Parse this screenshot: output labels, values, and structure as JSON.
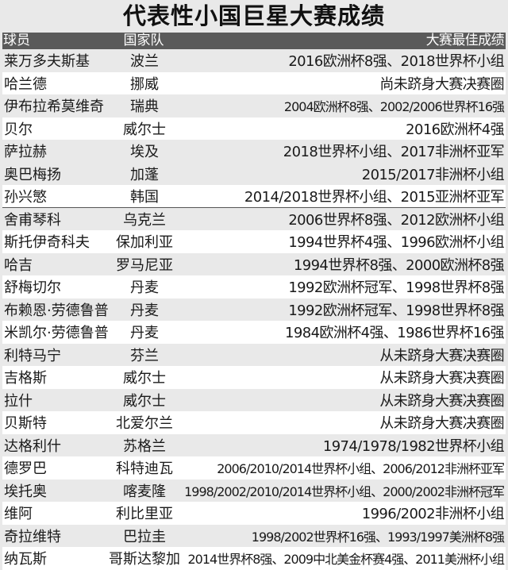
{
  "title": "代表性小国巨星大赛成绩",
  "header": {
    "player": "球员",
    "country": "国家队",
    "result": "大赛最佳成绩"
  },
  "rows": [
    {
      "player": "莱万多夫斯基",
      "country": "波兰",
      "result": "2016欧洲杯8强、2018世界杯小组"
    },
    {
      "player": "哈兰德",
      "country": "挪威",
      "result": "尚未跻身大赛决赛圈"
    },
    {
      "player": "伊布拉希莫维奇",
      "country": "瑞典",
      "result": "2004欧洲杯8强、2002/2006世界杯16强"
    },
    {
      "player": "贝尔",
      "country": "威尔士",
      "result": "2016欧洲杯4强"
    },
    {
      "player": "萨拉赫",
      "country": "埃及",
      "result": "2018世界杯小组、2017非洲杯亚军"
    },
    {
      "player": "奥巴梅扬",
      "country": "加蓬",
      "result": "2015/2017非洲杯小组"
    },
    {
      "player": "孙兴慜",
      "country": "韩国",
      "result": "2014/2018世界杯小组、2015亚洲杯亚军"
    },
    {
      "player": "舍甫琴科",
      "country": "乌克兰",
      "result": "2006世界杯8强、2012欧洲杯小组"
    },
    {
      "player": "斯托伊奇科夫",
      "country": "保加利亚",
      "result": "1994世界杯4强、1996欧洲杯小组"
    },
    {
      "player": "哈吉",
      "country": "罗马尼亚",
      "result": "1994世界杯8强、2000欧洲杯8强"
    },
    {
      "player": "舒梅切尔",
      "country": "丹麦",
      "result": "1992欧洲杯冠军、1998世界杯8强"
    },
    {
      "player": "布赖恩·劳德鲁普",
      "country": "丹麦",
      "result": "1992欧洲杯冠军、1998世界杯8强"
    },
    {
      "player": "米凯尔·劳德鲁普",
      "country": "丹麦",
      "result": "1984欧洲杯4强、1986世界杯16强"
    },
    {
      "player": "利特马宁",
      "country": "芬兰",
      "result": "从未跻身大赛决赛圈"
    },
    {
      "player": "吉格斯",
      "country": "威尔士",
      "result": "从未跻身大赛决赛圈"
    },
    {
      "player": "拉什",
      "country": "威尔士",
      "result": "从未跻身大赛决赛圈"
    },
    {
      "player": "贝斯特",
      "country": "北爱尔兰",
      "result": "从未跻身大赛决赛圈"
    },
    {
      "player": "达格利什",
      "country": "苏格兰",
      "result": "1974/1978/1982世界杯小组"
    },
    {
      "player": "德罗巴",
      "country": "科特迪瓦",
      "result": "2006/2010/2014世界杯小组、2006/2012非洲杯亚军"
    },
    {
      "player": "埃托奥",
      "country": "喀麦隆",
      "result": "1998/2002/2010/2014世界杯小组、2000/2002非洲杯冠军"
    },
    {
      "player": "维阿",
      "country": "利比里亚",
      "result": "1996/2002非洲杯小组"
    },
    {
      "player": "奇拉维特",
      "country": "巴拉圭",
      "result": "1998/2002世界杯16强、1993/1997美洲杯8强"
    },
    {
      "player": "纳瓦斯",
      "country": "哥斯达黎加",
      "result": "2014世界杯8强、2009中北美金杯赛4强、2011美洲杯小组"
    }
  ]
}
